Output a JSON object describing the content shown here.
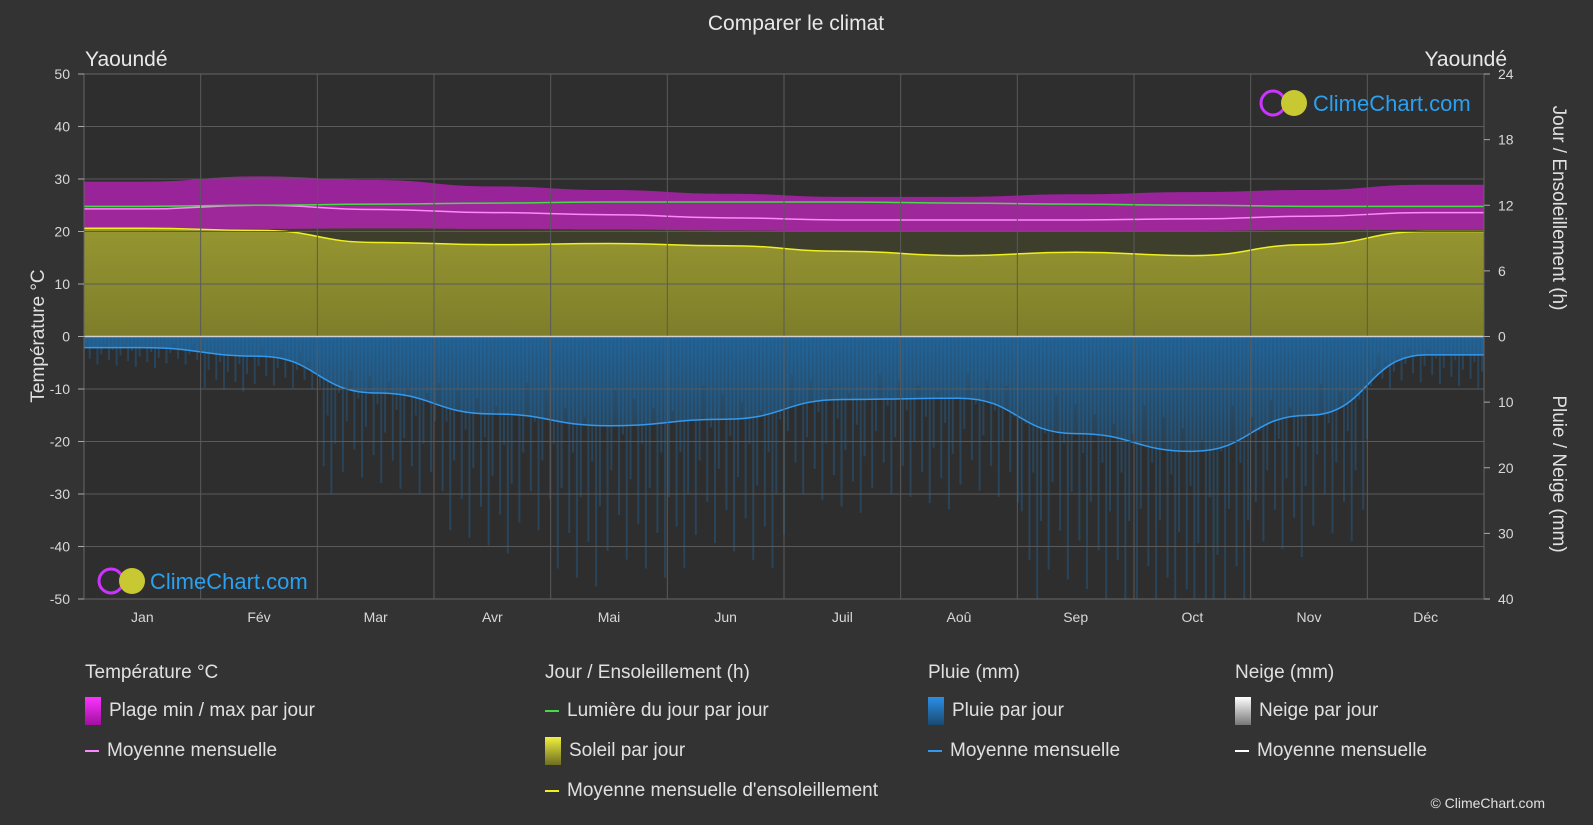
{
  "title": "Comparer le climat",
  "location_left": "Yaoundé",
  "location_right": "Yaoundé",
  "watermark": "ClimeChart.com",
  "copyright": "© ClimeChart.com",
  "colors": {
    "background": "#333333",
    "temp_band": "#d21fd2",
    "temp_mean": "#ff88ff",
    "daylight": "#44dd44",
    "sunshine_fill": "#a8a832",
    "sunshine_mean": "#f0f020",
    "rain_fill": "#1f6fae",
    "rain_mean": "#3399ee",
    "snow_mean": "#ffffff",
    "brand_blue": "#2aa0f0"
  },
  "chart_data": {
    "type": "area",
    "title": "Comparer le climat",
    "categories": [
      "Jan",
      "Fév",
      "Mar",
      "Avr",
      "Mai",
      "Jun",
      "Juil",
      "Aoû",
      "Sep",
      "Oct",
      "Nov",
      "Déc"
    ],
    "left_axis": {
      "label": "Température °C",
      "range": [
        -50,
        50
      ],
      "ticks": [
        "50",
        "40",
        "30",
        "20",
        "10",
        "0",
        "-10",
        "-20",
        "-30",
        "-40",
        "-50"
      ]
    },
    "right_axis_top": {
      "label": "Jour / Ensoleillement (h)",
      "range": [
        0,
        24
      ],
      "ticks": [
        "24",
        "18",
        "12",
        "6",
        "0"
      ]
    },
    "right_axis_bottom": {
      "label": "Pluie / Neige (mm)",
      "range": [
        0,
        40
      ],
      "ticks": [
        "0",
        "10",
        "20",
        "30",
        "40"
      ]
    },
    "grid": true,
    "series": [
      {
        "name": "Plage min / max par jour",
        "kind": "band",
        "axis": "temperature",
        "min": [
          20.5,
          20.5,
          20.6,
          20.5,
          20.4,
          20.2,
          20.0,
          20.0,
          20.0,
          20.1,
          20.3,
          20.3
        ],
        "max": [
          29.5,
          30.5,
          29.8,
          28.6,
          27.9,
          27.2,
          26.6,
          26.6,
          27.1,
          27.5,
          27.9,
          28.9
        ]
      },
      {
        "name": "Moyenne mensuelle",
        "kind": "line",
        "axis": "temperature",
        "values": [
          24.3,
          25.0,
          24.2,
          23.6,
          23.2,
          22.6,
          22.2,
          22.2,
          22.2,
          22.4,
          22.9,
          23.6
        ]
      },
      {
        "name": "Lumière du jour par jour",
        "kind": "line",
        "axis": "sun_hours",
        "values": [
          11.9,
          12.0,
          12.1,
          12.2,
          12.3,
          12.3,
          12.3,
          12.2,
          12.1,
          12.0,
          11.9,
          11.9
        ]
      },
      {
        "name": "Soleil par jour",
        "kind": "area",
        "axis": "sun_hours",
        "values": [
          9.9,
          9.7,
          8.6,
          8.4,
          8.5,
          8.3,
          7.8,
          7.4,
          7.7,
          7.4,
          8.4,
          9.6
        ]
      },
      {
        "name": "Moyenne mensuelle d'ensoleillement",
        "kind": "line",
        "axis": "sun_hours",
        "values": [
          9.9,
          9.7,
          8.6,
          8.4,
          8.5,
          8.3,
          7.8,
          7.4,
          7.7,
          7.4,
          8.4,
          9.6
        ]
      },
      {
        "name": "Pluie par jour",
        "kind": "area",
        "axis": "precip_mm",
        "values": [
          1.7,
          3.0,
          8.6,
          11.8,
          13.6,
          12.6,
          9.6,
          9.4,
          14.8,
          17.5,
          12.0,
          2.8
        ]
      },
      {
        "name": "Moyenne mensuelle",
        "kind": "line",
        "axis": "precip_mm",
        "values": [
          1.7,
          3.0,
          8.6,
          11.8,
          13.6,
          12.6,
          9.6,
          9.4,
          14.8,
          17.5,
          12.0,
          2.8
        ]
      },
      {
        "name": "Neige par jour",
        "kind": "area",
        "axis": "precip_mm",
        "values": [
          0,
          0,
          0,
          0,
          0,
          0,
          0,
          0,
          0,
          0,
          0,
          0
        ]
      },
      {
        "name": "Moyenne mensuelle",
        "kind": "line",
        "axis": "precip_mm",
        "values": [
          0,
          0,
          0,
          0,
          0,
          0,
          0,
          0,
          0,
          0,
          0,
          0
        ]
      }
    ]
  },
  "legend": {
    "temperature": {
      "title": "Température °C",
      "items": [
        "Plage min / max par jour",
        "Moyenne mensuelle"
      ]
    },
    "sun": {
      "title": "Jour / Ensoleillement (h)",
      "items": [
        "Lumière du jour par jour",
        "Soleil par jour",
        "Moyenne mensuelle d'ensoleillement"
      ]
    },
    "rain": {
      "title": "Pluie (mm)",
      "items": [
        "Pluie par jour",
        "Moyenne mensuelle"
      ]
    },
    "snow": {
      "title": "Neige (mm)",
      "items": [
        "Neige par jour",
        "Moyenne mensuelle"
      ]
    }
  }
}
